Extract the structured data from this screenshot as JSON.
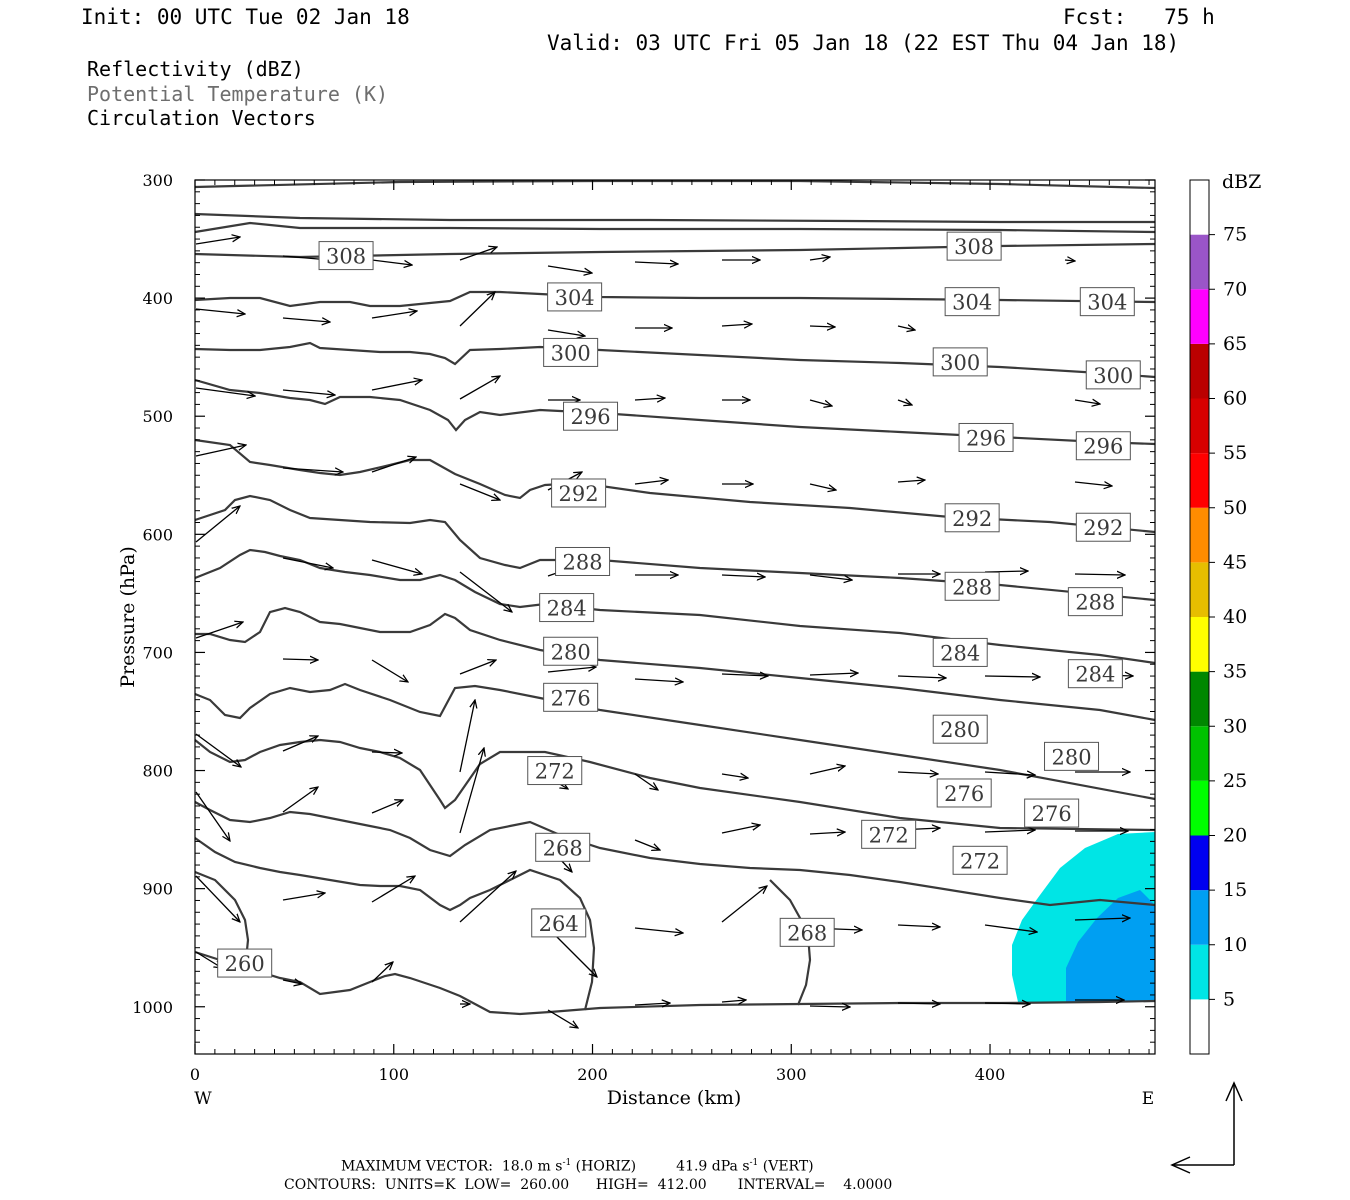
{
  "header": {
    "init": "Init: 00 UTC Tue 02 Jan 18",
    "fcst": "Fcst:   75 h",
    "valid": "Valid: 03 UTC Fri 05 Jan 18 (22 EST Thu 04 Jan 18)"
  },
  "legend": {
    "line1": "Reflectivity (dBZ)",
    "line2": "Potential Temperature (K)",
    "line3": "Circulation Vectors"
  },
  "footer": {
    "max_vector_label": "MAXIMUM VECTOR:",
    "horiz_value": "18.0 m s",
    "horiz_exp": "-1",
    "horiz_suffix": "(HORIZ)",
    "vert_value": "41.9 dPa s",
    "vert_exp": "-1",
    "vert_suffix": "(VERT)",
    "contours": "CONTOURS:  UNITS=K  LOW=  260.00      HIGH=  412.00       INTERVAL=    4.0000"
  },
  "colors": {
    "contour": "#3a3a3a",
    "cyan": "#00e5e5",
    "blue": "#009ff2"
  },
  "chart_data": {
    "type": "cross-section",
    "xlabel": "Distance (km)",
    "ylabel": "Pressure (hPa)",
    "x_left_label": "W",
    "x_right_label": "E",
    "xlim": [
      0,
      483
    ],
    "ylim": [
      1040,
      300
    ],
    "x_ticks": [
      0,
      100,
      200,
      300,
      400
    ],
    "y_ticks": [
      300,
      400,
      500,
      600,
      700,
      800,
      900,
      1000
    ],
    "colorbar": {
      "unit": "dBZ",
      "levels": [
        5,
        10,
        15,
        20,
        25,
        30,
        35,
        40,
        45,
        50,
        55,
        60,
        65,
        70,
        75
      ],
      "colors": [
        "#ffffff",
        "#00e5e5",
        "#009ff2",
        "#0000f0",
        "#00ff00",
        "#00c200",
        "#008700",
        "#ffff00",
        "#e6be00",
        "#ff8c00",
        "#ff0000",
        "#d70000",
        "#bb0000",
        "#ff00ff",
        "#9a55c8",
        "#ffffff"
      ]
    },
    "contour_labels": [
      {
        "value": "308",
        "x": 76,
        "p": 364
      },
      {
        "value": "308",
        "x": 392,
        "p": 356
      },
      {
        "value": "304",
        "x": 191,
        "p": 399
      },
      {
        "value": "304",
        "x": 391,
        "p": 403
      },
      {
        "value": "304",
        "x": 459,
        "p": 403
      },
      {
        "value": "300",
        "x": 189,
        "p": 446
      },
      {
        "value": "300",
        "x": 385,
        "p": 454
      },
      {
        "value": "300",
        "x": 462,
        "p": 465
      },
      {
        "value": "296",
        "x": 199,
        "p": 500
      },
      {
        "value": "296",
        "x": 398,
        "p": 518
      },
      {
        "value": "296",
        "x": 457,
        "p": 525
      },
      {
        "value": "292",
        "x": 193,
        "p": 565
      },
      {
        "value": "292",
        "x": 391,
        "p": 586
      },
      {
        "value": "292",
        "x": 457,
        "p": 594
      },
      {
        "value": "288",
        "x": 195,
        "p": 623
      },
      {
        "value": "288",
        "x": 391,
        "p": 644
      },
      {
        "value": "288",
        "x": 453,
        "p": 657
      },
      {
        "value": "284",
        "x": 187,
        "p": 662
      },
      {
        "value": "284",
        "x": 385,
        "p": 700
      },
      {
        "value": "284",
        "x": 453,
        "p": 718
      },
      {
        "value": "280",
        "x": 189,
        "p": 699
      },
      {
        "value": "280",
        "x": 385,
        "p": 765
      },
      {
        "value": "280",
        "x": 441,
        "p": 788
      },
      {
        "value": "276",
        "x": 189,
        "p": 738
      },
      {
        "value": "276",
        "x": 387,
        "p": 819
      },
      {
        "value": "276",
        "x": 431,
        "p": 836
      },
      {
        "value": "272",
        "x": 181,
        "p": 800
      },
      {
        "value": "272",
        "x": 349,
        "p": 854
      },
      {
        "value": "272",
        "x": 395,
        "p": 876
      },
      {
        "value": "268",
        "x": 185,
        "p": 865
      },
      {
        "value": "268",
        "x": 308,
        "p": 937
      },
      {
        "value": "264",
        "x": 183,
        "p": 929
      },
      {
        "value": "260",
        "x": 25,
        "p": 963
      }
    ]
  }
}
